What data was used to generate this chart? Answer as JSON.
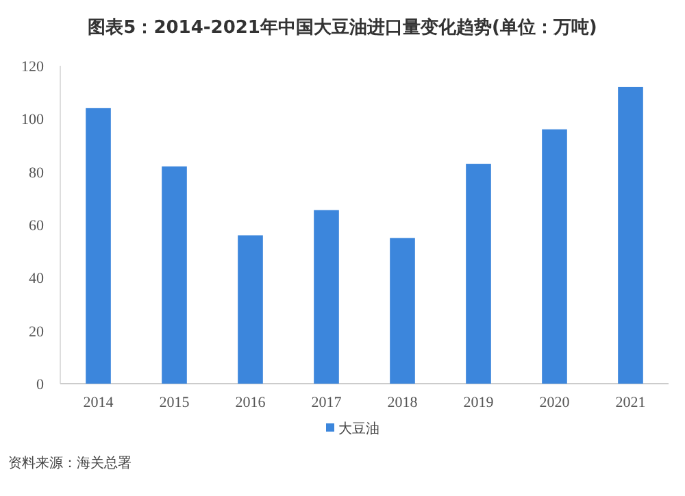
{
  "chart_data": {
    "type": "bar",
    "title": "图表5：2014-2021年中国大豆油进口量变化趋势(单位：万吨)",
    "categories": [
      "2014",
      "2015",
      "2016",
      "2017",
      "2018",
      "2019",
      "2020",
      "2021"
    ],
    "series": [
      {
        "name": "大豆油",
        "color": "#3c86dc",
        "values": [
          104,
          82,
          56,
          65.5,
          55,
          83,
          96,
          112
        ]
      }
    ],
    "ylim": [
      0,
      120
    ],
    "yticks": [
      0,
      20,
      40,
      60,
      80,
      100,
      120
    ],
    "legend": "bottom",
    "annotations": [
      "资料来源：海关总署"
    ]
  }
}
